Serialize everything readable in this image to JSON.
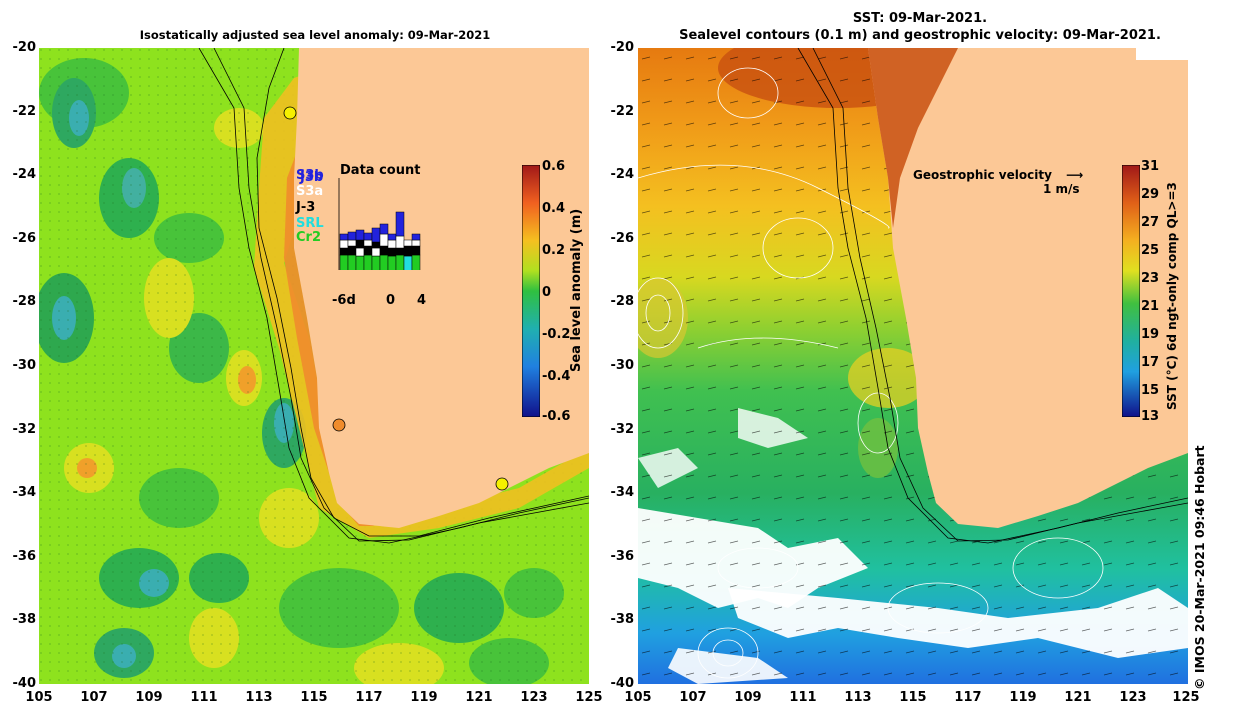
{
  "left_panel": {
    "title": "Isostatically adjusted sea level anomaly: 09-Mar-2021",
    "colorbar": {
      "label": "Sea level anomaly (m)",
      "ticks": [
        "0.6",
        "0.4",
        "0.2",
        "0",
        "-0.2",
        "-0.4",
        "-0.6"
      ]
    },
    "inset": {
      "title": "Data count",
      "satellites": [
        "S3b",
        "J3b",
        "S3a",
        "J-3",
        "SRL",
        "Cr2"
      ],
      "sat_colors": [
        "#2222dd",
        "#2222dd",
        "#ffffff",
        "#000000",
        "#22dddd",
        "#22cc22"
      ],
      "x_ticks": [
        "-6d",
        "0",
        "4"
      ]
    },
    "markers": [
      {
        "lon": 114.2,
        "lat": -22.0,
        "color": "#f5f000"
      },
      {
        "lon": 115.9,
        "lat": -31.8,
        "color": "#f08c2c"
      },
      {
        "lon": 121.9,
        "lat": -33.7,
        "color": "#f5f000"
      }
    ]
  },
  "right_panel": {
    "title_line1": "SST: 09-Mar-2021.",
    "title_line2": "Sealevel contours (0.1 m) and geostrophic velocity: 09-Mar-2021.",
    "velocity_label": "Geostrophic velocity",
    "velocity_scale": "1 m/s",
    "colorbar": {
      "label": "SST (°C) 6d ngt-only comp QL>=3",
      "ticks": [
        "31",
        "29",
        "27",
        "25",
        "23",
        "21",
        "19",
        "17",
        "15",
        "13"
      ]
    },
    "credit": "© IMOS 20-Mar-2021 09:46 Hobart"
  },
  "axes": {
    "lat_ticks": [
      "-20",
      "-22",
      "-24",
      "-26",
      "-28",
      "-30",
      "-32",
      "-34",
      "-36",
      "-38",
      "-40"
    ],
    "lon_ticks": [
      "105",
      "107",
      "109",
      "111",
      "113",
      "115",
      "117",
      "119",
      "121",
      "123",
      "125"
    ]
  },
  "colors": {
    "land": "#fcc896",
    "sla_neutral": "#3ec83e",
    "sst_warm": "#e67a10",
    "sst_cool": "#30c060"
  }
}
